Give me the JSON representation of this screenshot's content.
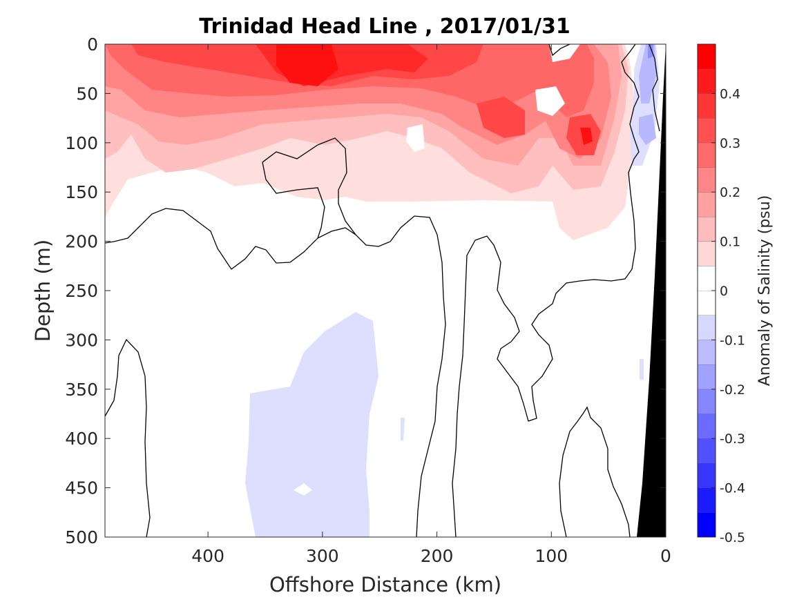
{
  "chart_data": {
    "type": "contour",
    "title": "Trinidad Head Line , 2017/01/31",
    "xlabel": "Offshore Distance (km)",
    "ylabel": "Depth (m)",
    "xlim": [
      490,
      0
    ],
    "ylim": [
      0,
      500
    ],
    "x_ticks": [
      "400",
      "300",
      "200",
      "100",
      "0"
    ],
    "y_ticks": [
      "0",
      "50",
      "100",
      "150",
      "200",
      "250",
      "300",
      "350",
      "400",
      "450",
      "500"
    ],
    "colorbar": {
      "label": "Anomaly of Salinity (psu)",
      "range": [
        -0.5,
        0.5
      ],
      "levels": [
        -0.5,
        -0.45,
        -0.4,
        -0.35,
        -0.3,
        -0.25,
        -0.2,
        -0.15,
        -0.1,
        -0.05,
        0,
        0.05,
        0.1,
        0.15,
        0.2,
        0.25,
        0.3,
        0.35,
        0.4,
        0.45,
        0.5
      ],
      "tick_labels": [
        "0.4",
        "0.3",
        "0.2",
        "0.1",
        "0",
        "-0.1",
        "-0.2",
        "-0.3",
        "-0.4",
        "-0.5"
      ],
      "colormap": "blue-white-red"
    },
    "colors": {
      "positive": "#ff0000",
      "negative": "#0000ff",
      "neutral": "#ffffff",
      "land": "#000000"
    }
  }
}
